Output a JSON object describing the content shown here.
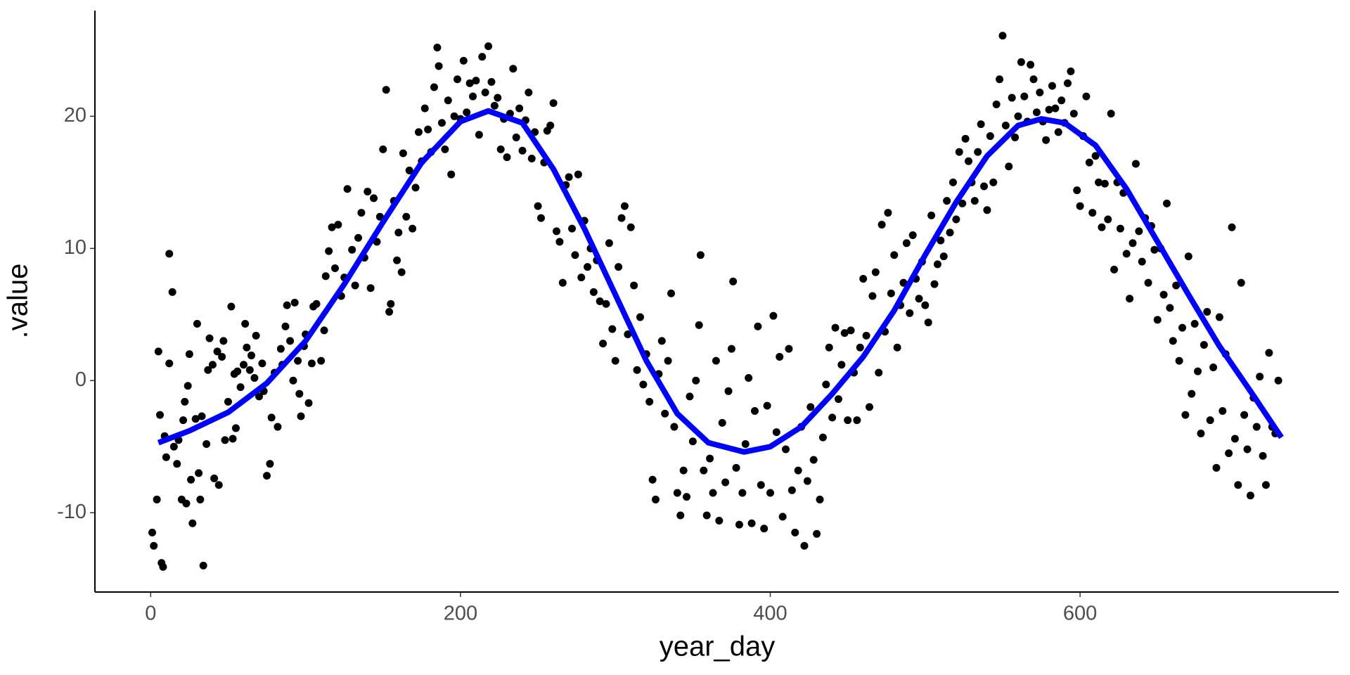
{
  "chart_data": {
    "type": "scatter",
    "x_label": "year_day",
    "y_label": ".value",
    "xlim": [
      -36,
      767
    ],
    "ylim": [
      -16,
      28
    ],
    "xticks": [
      0,
      200,
      400,
      600
    ],
    "yticks": [
      -10,
      0,
      10,
      20
    ],
    "grid": false,
    "x": [
      1,
      2,
      4,
      5,
      6,
      7,
      8,
      9,
      10,
      12,
      12,
      14,
      15,
      17,
      18,
      20,
      21,
      22,
      23,
      24,
      25,
      26,
      27,
      29,
      30,
      31,
      32,
      33,
      34,
      36,
      37,
      38,
      40,
      41,
      43,
      44,
      46,
      47,
      48,
      50,
      52,
      53,
      54,
      55,
      56,
      58,
      60,
      61,
      62,
      64,
      65,
      67,
      68,
      70,
      72,
      73,
      75,
      77,
      78,
      80,
      82,
      84,
      85,
      87,
      88,
      90,
      92,
      93,
      95,
      96,
      97,
      99,
      100,
      102,
      104,
      105,
      107,
      110,
      112,
      113,
      115,
      117,
      119,
      121,
      123,
      125,
      127,
      130,
      132,
      134,
      136,
      138,
      140,
      142,
      144,
      146,
      148,
      150,
      152,
      154,
      155,
      157,
      159,
      160,
      162,
      163,
      165,
      167,
      169,
      171,
      173,
      175,
      177,
      179,
      181,
      183,
      185,
      186,
      188,
      190,
      192,
      194,
      196,
      198,
      200,
      202,
      204,
      206,
      208,
      210,
      212,
      214,
      216,
      218,
      220,
      222,
      224,
      226,
      228,
      230,
      232,
      234,
      236,
      238,
      240,
      242,
      244,
      246,
      248,
      250,
      252,
      254,
      256,
      258,
      260,
      262,
      264,
      266,
      268,
      270,
      272,
      274,
      276,
      278,
      280,
      282,
      284,
      286,
      288,
      290,
      292,
      294,
      296,
      298,
      300,
      302,
      304,
      306,
      308,
      310,
      312,
      314,
      316,
      318,
      320,
      322,
      324,
      326,
      328,
      330,
      332,
      334,
      336,
      338,
      340,
      342,
      344,
      346,
      348,
      350,
      352,
      354,
      355,
      357,
      359,
      361,
      363,
      365,
      367,
      369,
      371,
      373,
      375,
      376,
      378,
      380,
      382,
      384,
      386,
      388,
      390,
      392,
      394,
      396,
      398,
      400,
      402,
      404,
      406,
      408,
      410,
      412,
      414,
      416,
      418,
      420,
      422,
      424,
      426,
      428,
      430,
      432,
      434,
      436,
      438,
      440,
      442,
      444,
      446,
      448,
      450,
      452,
      454,
      456,
      458,
      460,
      462,
      464,
      466,
      468,
      470,
      472,
      474,
      476,
      478,
      480,
      482,
      484,
      486,
      488,
      490,
      492,
      494,
      496,
      498,
      500,
      502,
      504,
      506,
      508,
      510,
      512,
      514,
      516,
      518,
      520,
      522,
      524,
      526,
      528,
      530,
      532,
      534,
      536,
      538,
      540,
      542,
      544,
      546,
      548,
      550,
      552,
      554,
      556,
      558,
      560,
      562,
      564,
      566,
      568,
      570,
      572,
      574,
      576,
      578,
      580,
      582,
      584,
      586,
      588,
      590,
      592,
      594,
      596,
      598,
      600,
      602,
      604,
      606,
      608,
      610,
      612,
      614,
      616,
      618,
      620,
      622,
      624,
      626,
      628,
      630,
      632,
      634,
      636,
      638,
      640,
      642,
      644,
      646,
      648,
      650,
      652,
      654,
      656,
      658,
      660,
      662,
      664,
      666,
      668,
      670,
      672,
      674,
      676,
      678,
      680,
      682,
      684,
      686,
      688,
      690,
      692,
      694,
      696,
      698,
      700,
      702,
      704,
      706,
      708,
      710,
      712,
      714,
      716,
      718,
      720,
      722,
      724,
      726,
      728
    ],
    "series": [
      {
        "color": "#000000",
        "values": [
          -11.5,
          -12.5,
          -9,
          2.2,
          -2.6,
          -13.8,
          -14.1,
          -4.2,
          -5.8,
          1.3,
          9.6,
          6.7,
          -5,
          -6.3,
          -4.5,
          -9,
          -3,
          -1.6,
          -9.3,
          -0.4,
          2,
          -7.5,
          -10.8,
          -2.9,
          4.3,
          -7,
          -9,
          -2.7,
          -14,
          -4.8,
          0.8,
          3.2,
          1.2,
          -7.4,
          2.2,
          -7.9,
          1.8,
          3,
          -4.5,
          -1.6,
          5.6,
          -4.4,
          0.5,
          -3.6,
          0.7,
          -0.5,
          1.2,
          4.3,
          2.5,
          0.8,
          1.9,
          0.2,
          3.4,
          -1.2,
          1.3,
          -0.8,
          -7.2,
          -6.3,
          -2.8,
          0.6,
          -3.5,
          2.4,
          1.2,
          4.1,
          5.7,
          3,
          0,
          5.9,
          1.5,
          -1,
          -2.7,
          2.6,
          3.5,
          -1.7,
          1.3,
          5.6,
          5.8,
          1.5,
          3.8,
          7.9,
          9.8,
          11.6,
          8.5,
          11.8,
          6.4,
          7.8,
          14.5,
          9.9,
          7.2,
          10.8,
          12.7,
          9.3,
          14.3,
          7,
          13.8,
          10.5,
          12.4,
          17.5,
          22,
          5.2,
          5.8,
          13.6,
          9.1,
          11.2,
          8.2,
          17.2,
          12.4,
          15.9,
          11.5,
          14.6,
          18.8,
          16.6,
          20.6,
          19,
          17.3,
          22.2,
          25.2,
          23.8,
          19.5,
          17.5,
          21.2,
          15.6,
          20,
          22.8,
          19.8,
          24.2,
          20.3,
          22.5,
          21.5,
          22.7,
          18.6,
          24.5,
          21.8,
          25.3,
          22.6,
          20.8,
          21.4,
          17.5,
          19.8,
          16.9,
          20.2,
          23.6,
          18.4,
          20.6,
          17.4,
          19.7,
          21.8,
          16.8,
          18.8,
          13.2,
          12.3,
          16.5,
          18.9,
          19.3,
          21,
          11.3,
          10.5,
          7.4,
          14.8,
          15.4,
          11.5,
          9.5,
          15.6,
          7.8,
          12.1,
          8.6,
          10,
          6.7,
          9.1,
          6,
          2.8,
          5.8,
          10.4,
          3.9,
          1.5,
          8.6,
          12.3,
          13.2,
          3.5,
          11.6,
          7.2,
          0.8,
          4.8,
          -0.3,
          2,
          -1.6,
          -7.5,
          -9,
          0.5,
          3,
          -2.5,
          1.5,
          6.6,
          -3.5,
          -8.5,
          -10.2,
          -6.8,
          -8.8,
          -1.2,
          -4.6,
          0,
          4.2,
          9.5,
          -6.8,
          -10.2,
          -5.9,
          -8.5,
          1.5,
          -10.6,
          -3.2,
          -7.7,
          -0.8,
          2.4,
          7.5,
          -6.6,
          -10.9,
          -8.5,
          -4.8,
          0.2,
          -10.8,
          -2.3,
          4.1,
          -7.9,
          -11.2,
          -1.9,
          -8.5,
          4.9,
          -3.9,
          1.8,
          -10.3,
          -5.2,
          2.4,
          -8.3,
          -11.5,
          -6.8,
          -3.5,
          -12.5,
          -7.6,
          -2,
          -6,
          -11.6,
          -9,
          -4.3,
          -0.3,
          2.5,
          -2.8,
          4,
          -1.4,
          1.2,
          3.6,
          -3,
          3.8,
          0.6,
          -3,
          2.5,
          7.7,
          3.4,
          -2,
          6.4,
          8.2,
          0.6,
          11.8,
          3.7,
          12.7,
          6.6,
          9.5,
          2.5,
          5.7,
          7.4,
          10.4,
          5.1,
          11,
          7.7,
          6.2,
          9,
          5.7,
          4.4,
          12.5,
          7.3,
          8.8,
          10.6,
          9.4,
          13.6,
          11.2,
          15,
          12.2,
          17.3,
          13.4,
          18.3,
          16.6,
          15,
          13.6,
          17.3,
          19.4,
          14.7,
          12.9,
          18.5,
          15,
          20.9,
          22.8,
          26.1,
          19.3,
          16.2,
          21.4,
          18.4,
          20,
          24.1,
          21.5,
          19.6,
          23.9,
          22.8,
          20.3,
          21.8,
          19.6,
          18.2,
          20.5,
          22.3,
          20.6,
          18.8,
          21.2,
          19.5,
          22.5,
          23.4,
          20.2,
          14.4,
          13.2,
          18.5,
          21.5,
          16.5,
          12.7,
          17,
          15,
          11.6,
          14.9,
          12.2,
          20.2,
          8.4,
          15,
          11.5,
          14.2,
          9.6,
          6.2,
          10.4,
          16.4,
          11.3,
          9,
          12.3,
          7.4,
          11.7,
          9.9,
          4.6,
          10,
          6.5,
          13.4,
          5.5,
          3,
          7.2,
          1.5,
          4,
          -2.6,
          9.4,
          -1,
          4.3,
          0.7,
          -4,
          2.7,
          5.2,
          -3,
          1,
          -6.6,
          4.8,
          -2.3,
          2,
          -5.5,
          11.6,
          -4.4,
          -7.9,
          7.4,
          -2.6,
          -5.2,
          -8.7,
          -1.3,
          -3.5,
          0.3,
          -5.7,
          -7.9,
          2.1,
          -3.5,
          -4,
          0
        ]
      }
    ],
    "smooth": {
      "color": "#0000ff",
      "x": [
        5,
        25,
        50,
        75,
        100,
        125,
        150,
        175,
        200,
        218,
        240,
        260,
        280,
        300,
        320,
        340,
        360,
        383,
        400,
        420,
        440,
        460,
        480,
        500,
        520,
        540,
        560,
        575,
        590,
        610,
        630,
        650,
        670,
        690,
        710,
        730
      ],
      "values": [
        -4.7,
        -3.8,
        -2.4,
        -0.2,
        3.0,
        7.3,
        12.0,
        16.5,
        19.6,
        20.4,
        19.5,
        16.0,
        11.5,
        6.5,
        1.5,
        -2.5,
        -4.7,
        -5.4,
        -5.0,
        -3.5,
        -1.0,
        1.8,
        5.3,
        9.5,
        13.5,
        17.0,
        19.3,
        19.8,
        19.5,
        17.8,
        14.5,
        10.5,
        6.5,
        2.6,
        -0.8,
        -4.3
      ]
    }
  }
}
